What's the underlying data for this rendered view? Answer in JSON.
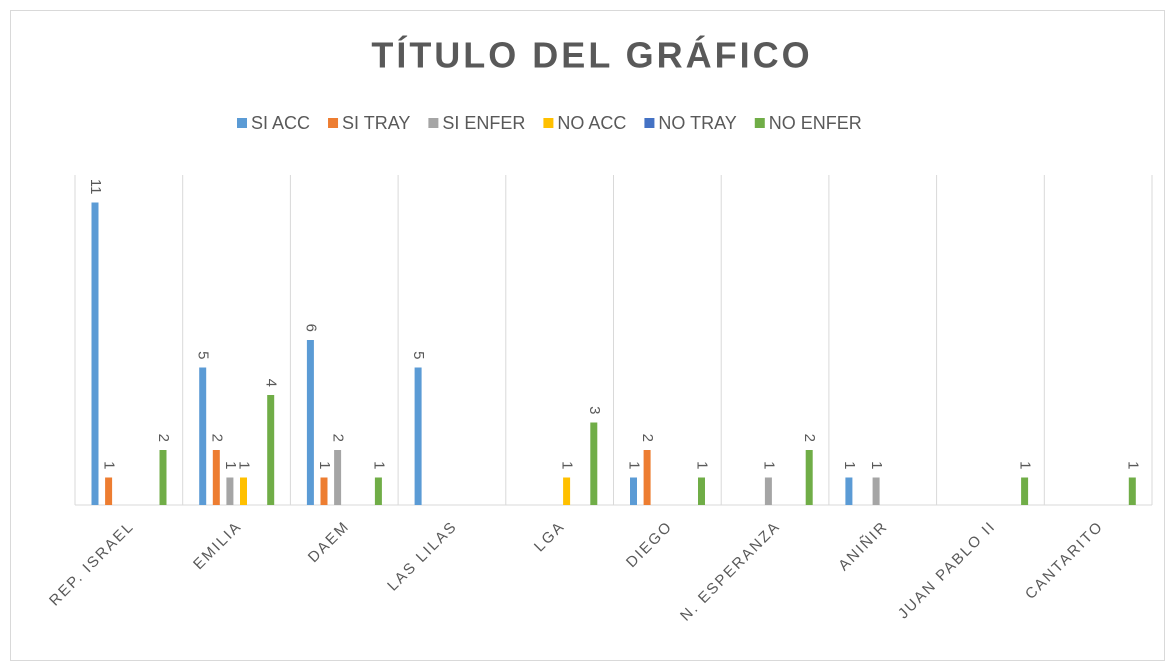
{
  "chart_data": {
    "type": "bar",
    "title": "TÍTULO DEL GRÁFICO",
    "categories": [
      "REP. ISRAEL",
      "EMILIA",
      "DAEM",
      "LAS LILAS",
      "LGA",
      "DIEGO",
      "N. ESPERANZA",
      "ANIÑIR",
      "JUAN PABLO II",
      "CANTARITO"
    ],
    "series": [
      {
        "name": "SI ACC",
        "color": "#5b9bd5",
        "values": [
          11,
          5,
          6,
          5,
          null,
          1,
          null,
          1,
          null,
          null
        ]
      },
      {
        "name": "SI TRAY",
        "color": "#ed7d31",
        "values": [
          1,
          2,
          1,
          null,
          null,
          2,
          null,
          null,
          null,
          null
        ]
      },
      {
        "name": "SI ENFER",
        "color": "#a5a5a5",
        "values": [
          null,
          1,
          2,
          null,
          null,
          null,
          1,
          1,
          null,
          null
        ]
      },
      {
        "name": "NO ACC",
        "color": "#ffc000",
        "values": [
          null,
          1,
          null,
          null,
          1,
          null,
          null,
          null,
          null,
          null
        ]
      },
      {
        "name": "NO TRAY",
        "color": "#4472c4",
        "values": [
          null,
          null,
          null,
          null,
          null,
          null,
          null,
          null,
          null,
          null
        ]
      },
      {
        "name": "NO ENFER",
        "color": "#70ad47",
        "values": [
          2,
          4,
          1,
          null,
          3,
          1,
          2,
          null,
          1,
          1
        ]
      }
    ],
    "ylim": [
      0,
      12
    ],
    "legend": "top",
    "grid": true
  }
}
